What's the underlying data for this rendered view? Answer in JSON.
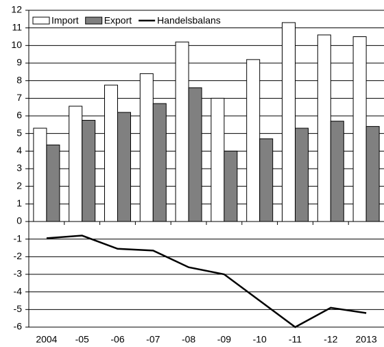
{
  "chart_data": {
    "type": "bar",
    "categories": [
      "2004",
      "-05",
      "-06",
      "-07",
      "-08",
      "-09",
      "-10",
      "-11",
      "-12",
      "2013"
    ],
    "series": [
      {
        "name": "Import",
        "type": "bar",
        "color": "#ffffff",
        "values": [
          5.3,
          6.55,
          7.75,
          8.4,
          10.2,
          7.0,
          9.2,
          11.3,
          10.6,
          10.5
        ]
      },
      {
        "name": "Export",
        "type": "bar",
        "color": "#808080",
        "values": [
          4.35,
          5.75,
          6.2,
          6.7,
          7.6,
          4.0,
          4.7,
          5.3,
          5.7,
          5.4
        ]
      },
      {
        "name": "Handelsbalans",
        "type": "line",
        "color": "#000000",
        "values": [
          -0.95,
          -0.8,
          -1.55,
          -1.65,
          -2.6,
          -3.0,
          -4.5,
          -6.0,
          -4.9,
          -5.2
        ]
      }
    ],
    "ylim": [
      -6,
      12
    ],
    "yticks": [
      -6,
      -5,
      -4,
      -3,
      -2,
      -1,
      0,
      1,
      2,
      3,
      4,
      5,
      6,
      7,
      8,
      9,
      10,
      11,
      12
    ],
    "grid": true,
    "legend": "top-left"
  }
}
